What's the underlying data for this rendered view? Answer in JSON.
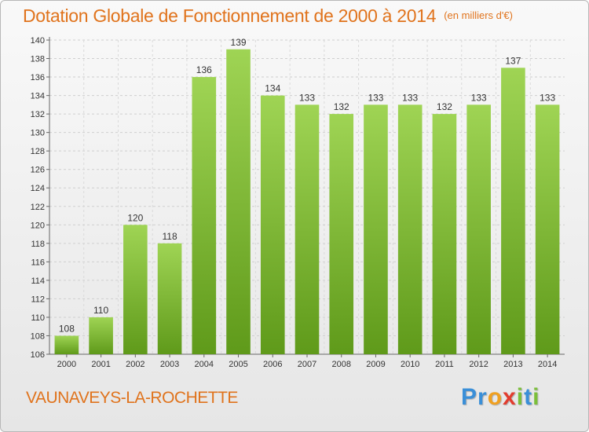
{
  "header": {
    "title": "Dotation Globale de Fonctionnement de 2000 à 2014",
    "unit": "(en milliers d'€)"
  },
  "footer": {
    "place": "VAUNAVEYS-LA-ROCHETTE",
    "logo_letters": [
      {
        "char": "P",
        "color": "#3a8fd8"
      },
      {
        "char": "r",
        "color": "#3a8fd8"
      },
      {
        "char": "o",
        "color": "#f0a020"
      },
      {
        "char": "x",
        "color": "#e23c2e"
      },
      {
        "char": "i",
        "color": "#7bbf3a"
      },
      {
        "char": "t",
        "color": "#3a8fd8"
      },
      {
        "char": "i",
        "color": "#7bbf3a"
      }
    ]
  },
  "chart_data": {
    "type": "bar",
    "categories": [
      "2000",
      "2001",
      "2002",
      "2003",
      "2004",
      "2005",
      "2006",
      "2007",
      "2008",
      "2009",
      "2010",
      "2011",
      "2012",
      "2013",
      "2014"
    ],
    "values": [
      108,
      110,
      120,
      118,
      136,
      139,
      134,
      133,
      132,
      133,
      133,
      132,
      133,
      137,
      133
    ],
    "ylim": [
      106,
      140
    ],
    "yticks": [
      106,
      108,
      110,
      112,
      114,
      116,
      118,
      120,
      122,
      124,
      126,
      128,
      130,
      132,
      134,
      136,
      138,
      140
    ],
    "grid": true,
    "bar_color": "#7cb82f",
    "title": "Dotation Globale de Fonctionnement de 2000 à 2014",
    "xlabel": "",
    "ylabel": ""
  }
}
